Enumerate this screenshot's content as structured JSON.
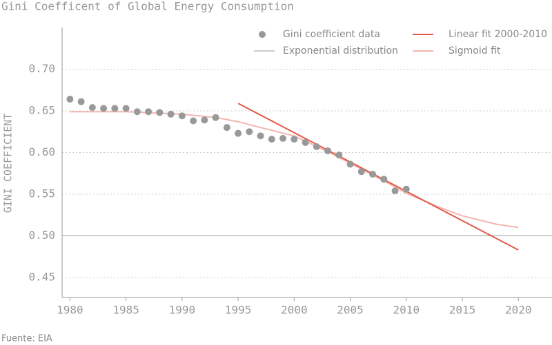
{
  "chart_data": {
    "type": "line",
    "title": "Gini Coefficent of Global Energy Consumption",
    "y_label": "GINI COEFFICIENT",
    "source": "Fuente: EIA",
    "xlim": [
      1979.3,
      2023
    ],
    "ylim": [
      0.426,
      0.75
    ],
    "xticks": [
      1980,
      1985,
      1990,
      1995,
      2000,
      2005,
      2010,
      2015,
      2020
    ],
    "yticks": [
      {
        "value": 0.45,
        "label": "0.45"
      },
      {
        "value": 0.5,
        "label": "0.50"
      },
      {
        "value": 0.55,
        "label": "0.55"
      },
      {
        "value": 0.6,
        "label": "0.60"
      },
      {
        "value": 0.65,
        "label": "0.65"
      },
      {
        "value": 0.7,
        "label": "0.70"
      }
    ],
    "grid": true,
    "series": [
      {
        "name": "Gini coefficient data",
        "type": "scatter",
        "color": "#999999",
        "x": [
          1980,
          1981,
          1982,
          1983,
          1984,
          1985,
          1986,
          1987,
          1988,
          1989,
          1990,
          1991,
          1992,
          1993,
          1994,
          1995,
          1996,
          1997,
          1998,
          1999,
          2000,
          2001,
          2002,
          2003,
          2004,
          2005,
          2006,
          2007,
          2008,
          2009,
          2010
        ],
        "values": [
          0.664,
          0.661,
          0.654,
          0.653,
          0.653,
          0.653,
          0.649,
          0.649,
          0.648,
          0.646,
          0.644,
          0.638,
          0.639,
          0.642,
          0.63,
          0.623,
          0.625,
          0.62,
          0.616,
          0.617,
          0.616,
          0.612,
          0.607,
          0.602,
          0.597,
          0.586,
          0.577,
          0.574,
          0.568,
          0.554,
          0.556
        ]
      },
      {
        "name": "Exponential distribution",
        "type": "line",
        "color": "#999999",
        "x": [
          1979.3,
          2023
        ],
        "values": [
          0.5,
          0.5
        ]
      },
      {
        "name": "Linear fit 2000-2010",
        "type": "line",
        "color": "#e05a47",
        "x": [
          1995,
          2020
        ],
        "values": [
          0.659,
          0.483
        ]
      },
      {
        "name": "Sigmoid fit",
        "type": "line",
        "color": "#f2b5b0",
        "x": [
          1980,
          1985,
          1990,
          1993,
          1995,
          1997,
          2000,
          2003,
          2005,
          2008,
          2010,
          2013,
          2015,
          2018,
          2020
        ],
        "values": [
          0.649,
          0.649,
          0.646,
          0.642,
          0.637,
          0.63,
          0.62,
          0.601,
          0.587,
          0.566,
          0.551,
          0.534,
          0.524,
          0.514,
          0.51
        ]
      }
    ]
  }
}
